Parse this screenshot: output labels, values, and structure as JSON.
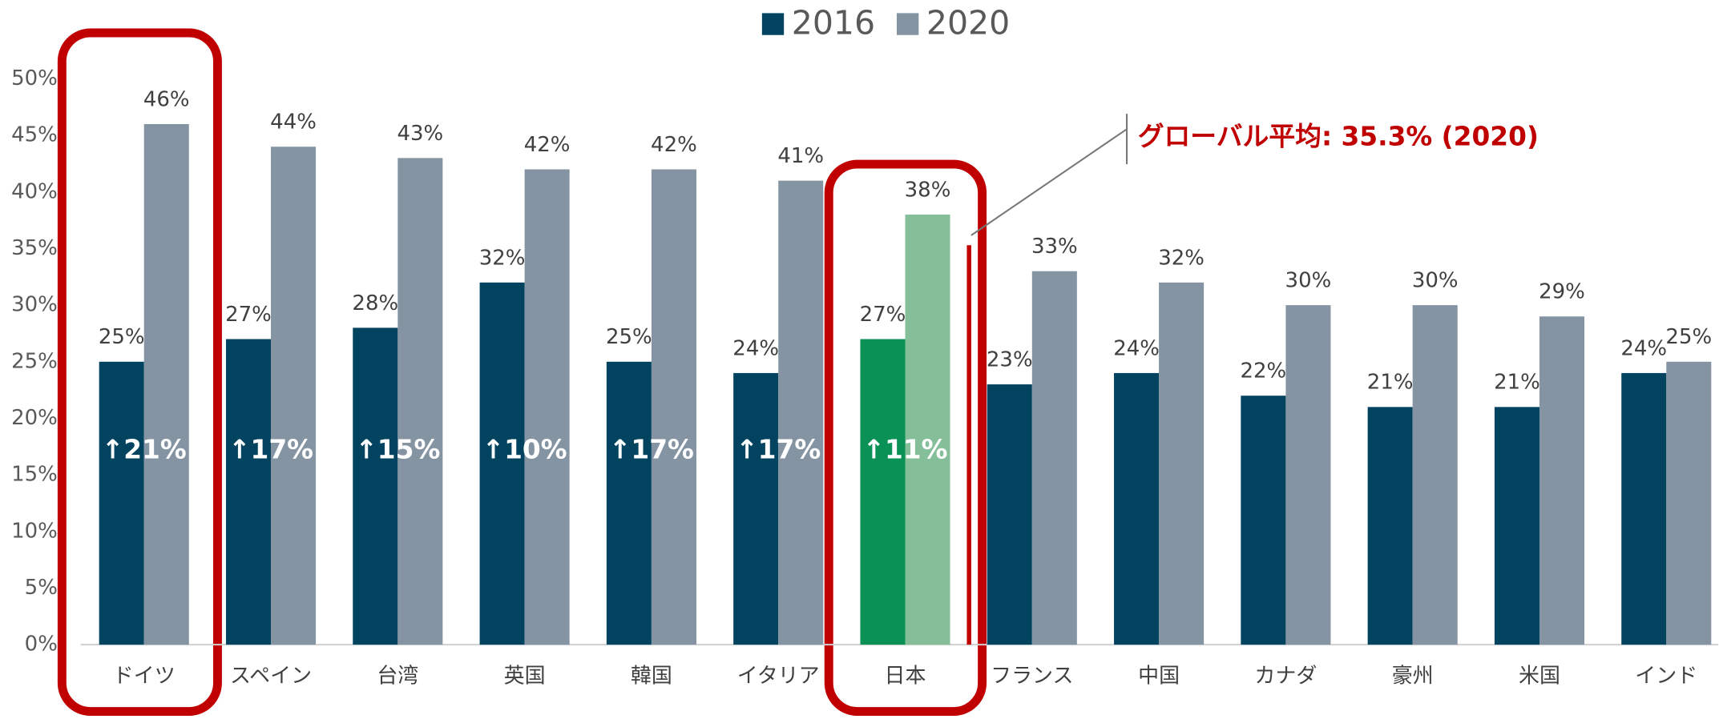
{
  "chart_data": {
    "type": "bar",
    "categories": [
      "ドイツ",
      "スペイン",
      "台湾",
      "英国",
      "韓国",
      "イタリア",
      "日本",
      "フランス",
      "中国",
      "カナダ",
      "豪州",
      "米国",
      "インド"
    ],
    "series": [
      {
        "name": "2016",
        "color": "#02445f",
        "colors": [
          "#02445f",
          "#02445f",
          "#02445f",
          "#02445f",
          "#02445f",
          "#02445f",
          "#0a9155",
          "#02445f",
          "#02445f",
          "#02445f",
          "#02445f",
          "#02445f",
          "#02445f"
        ],
        "values": [
          25,
          27,
          28,
          32,
          25,
          24,
          27,
          23,
          24,
          22,
          21,
          21,
          24
        ],
        "value_labels": [
          "25%",
          "27%",
          "28%",
          "32%",
          "25%",
          "24%",
          "27%",
          "23%",
          "24%",
          "22%",
          "21%",
          "21%",
          "24%"
        ]
      },
      {
        "name": "2020",
        "color": "#8494a3",
        "colors": [
          "#8494a3",
          "#8494a3",
          "#8494a3",
          "#8494a3",
          "#8494a3",
          "#8494a3",
          "#85bf9a",
          "#8494a3",
          "#8494a3",
          "#8494a3",
          "#8494a3",
          "#8494a3",
          "#8494a3"
        ],
        "values": [
          46,
          44,
          43,
          42,
          42,
          41,
          38,
          33,
          32,
          30,
          30,
          29,
          25
        ],
        "value_labels": [
          "46%",
          "44%",
          "43%",
          "42%",
          "42%",
          "41%",
          "38%",
          "33%",
          "32%",
          "30%",
          "30%",
          "29%",
          "25%"
        ]
      }
    ],
    "increase_labels": [
      "↑21%",
      "↑17%",
      "↑15%",
      "↑10%",
      "↑17%",
      "↑17%",
      "↑11%"
    ],
    "global_average": {
      "label": "グローバル平均: 35.3% (2020)",
      "value": 35.3
    },
    "ylim": [
      0,
      50
    ],
    "yticks": [
      {
        "value": 0,
        "label": "0%"
      },
      {
        "value": 5,
        "label": "5%"
      },
      {
        "value": 10,
        "label": "10%"
      },
      {
        "value": 15,
        "label": "15%"
      },
      {
        "value": 20,
        "label": "20%"
      },
      {
        "value": 25,
        "label": "25%"
      },
      {
        "value": 30,
        "label": "30%"
      },
      {
        "value": 35,
        "label": "35%"
      },
      {
        "value": 40,
        "label": "40%"
      },
      {
        "value": 45,
        "label": "45%"
      },
      {
        "value": 50,
        "label": "50%"
      }
    ],
    "legend": "top"
  }
}
